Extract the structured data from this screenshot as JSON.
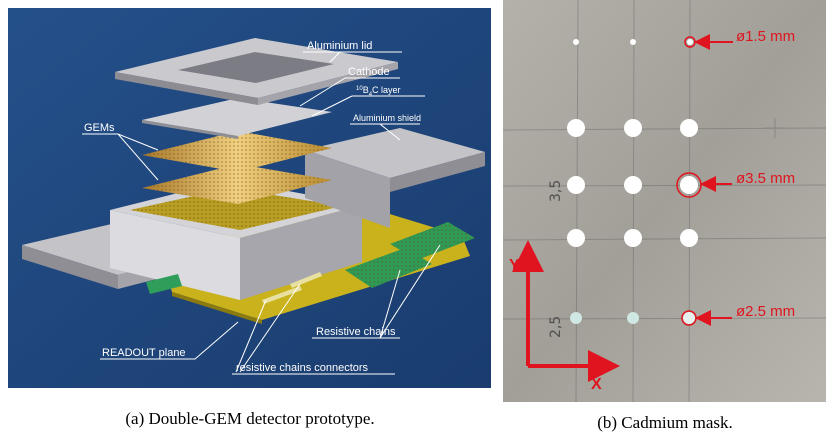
{
  "panel_a": {
    "labels": {
      "lid": "Aluminium lid",
      "cathode": "Cathode",
      "b4c": {
        "sup": "10",
        "b": "B",
        "sub": "4",
        "rest": "C layer"
      },
      "gems": "GEMs",
      "shield": "Aluminium shield",
      "chains": "Resistive chains",
      "readout": "READOUT plane",
      "connectors": "resistive chains connectors"
    },
    "caption": "(a) Double-GEM detector prototype."
  },
  "panel_b": {
    "holes": [
      "ø1.5 mm",
      "ø3.5 mm",
      "ø2.5 mm"
    ],
    "axes": {
      "y": "Y",
      "x": "X"
    },
    "handwriting": [
      "3,5",
      "2,5"
    ],
    "caption": "(b) Cadmium mask."
  }
}
